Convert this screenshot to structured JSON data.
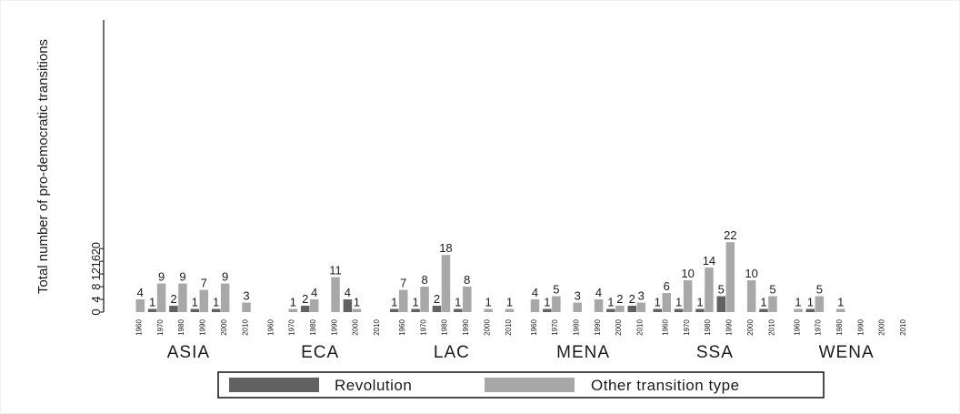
{
  "chart_data": {
    "type": "bar",
    "ylabel": "Total number of pro-democratic transitions",
    "ylim": [
      0,
      23
    ],
    "yticks": [
      0,
      4,
      8,
      12,
      16,
      20
    ],
    "grid": false,
    "legend_position": "bottom",
    "groups": [
      "ASIA",
      "ECA",
      "LAC",
      "MENA",
      "SSA",
      "WENA"
    ],
    "years": [
      "1960",
      "1970",
      "1980",
      "1990",
      "2000",
      "2010"
    ],
    "series": [
      {
        "name": "Revolution",
        "color": "#616161",
        "values": [
          [
            0,
            1,
            2,
            1,
            1,
            0
          ],
          [
            0,
            0,
            2,
            0,
            4,
            0
          ],
          [
            1,
            1,
            2,
            1,
            0,
            0
          ],
          [
            0,
            1,
            0,
            0,
            1,
            2
          ],
          [
            1,
            1,
            1,
            5,
            0,
            1
          ],
          [
            0,
            1,
            0,
            0,
            0,
            0
          ]
        ]
      },
      {
        "name": "Other transition type",
        "color": "#a8a8a8",
        "values": [
          [
            4,
            9,
            9,
            7,
            9,
            3
          ],
          [
            0,
            1,
            4,
            11,
            1,
            0
          ],
          [
            7,
            8,
            18,
            8,
            1,
            1
          ],
          [
            4,
            5,
            3,
            4,
            2,
            3
          ],
          [
            6,
            10,
            14,
            22,
            10,
            5
          ],
          [
            1,
            5,
            1,
            0,
            0,
            0
          ]
        ]
      }
    ],
    "bar_labels": {
      "Revolution": [
        [
          null,
          "1",
          "2",
          "1",
          "1",
          null
        ],
        [
          null,
          null,
          "2",
          null,
          "4",
          null
        ],
        [
          "1",
          "1",
          "2",
          "1",
          null,
          null
        ],
        [
          null,
          "1",
          null,
          null,
          "1",
          "2"
        ],
        [
          "1",
          "1",
          "1",
          "5",
          null,
          "1"
        ],
        [
          null,
          "1",
          null,
          null,
          null,
          null
        ]
      ],
      "Other transition type": [
        [
          "4",
          "9",
          "9",
          "7",
          "9",
          "3"
        ],
        [
          null,
          "1",
          "4",
          "11",
          "1",
          null
        ],
        [
          "7",
          "8",
          "18",
          "8",
          "1",
          "1"
        ],
        [
          "4",
          "5",
          "3",
          "4",
          "2",
          "3"
        ],
        [
          "6",
          "10",
          "14",
          "22",
          "10",
          "5"
        ],
        [
          "1",
          "5",
          "1",
          null,
          null,
          null
        ]
      ]
    }
  }
}
